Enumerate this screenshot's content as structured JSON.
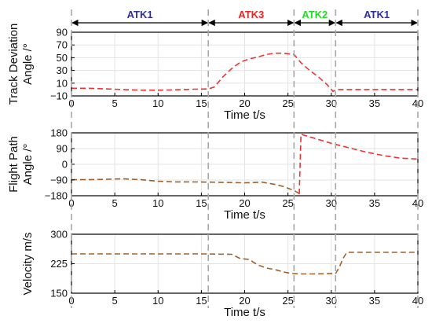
{
  "chart_data": {
    "type": "line",
    "phases": [
      {
        "label": "ATK1",
        "start": 0,
        "end": 15.8,
        "color": "#2e2e9f"
      },
      {
        "label": "ATK3",
        "start": 15.8,
        "end": 25.7,
        "color": "#ee2222"
      },
      {
        "label": "ATK2",
        "start": 25.7,
        "end": 30.5,
        "color": "#22dd22"
      },
      {
        "label": "ATK1",
        "start": 30.5,
        "end": 40,
        "color": "#2e2e9f"
      }
    ],
    "phase_boundaries": [
      0,
      15.8,
      25.7,
      30.5,
      40
    ],
    "panels": [
      {
        "ylabel_lines": [
          "Track Deviation",
          "Angle /°"
        ],
        "xlabel": "Time t/s",
        "xlim": [
          0,
          40
        ],
        "ylim": [
          -10,
          90
        ],
        "yticks": [
          -10,
          10,
          30,
          50,
          70,
          90
        ],
        "ytick_labels": [
          "−10",
          "10",
          "30",
          "50",
          "70",
          "90"
        ],
        "xticks": [
          0,
          5,
          10,
          15,
          20,
          25,
          30,
          35,
          40
        ],
        "series": [
          {
            "color": "#ee3333",
            "segments": [
              [
                [
                  0,
                  2
                ],
                [
                  2,
                  2
                ],
                [
                  4,
                  1
                ],
                [
                  6,
                  0
                ],
                [
                  8,
                  -1
                ],
                [
                  10,
                  -1
                ],
                [
                  12,
                  -0.5
                ],
                [
                  14,
                  0.5
                ],
                [
                  15.8,
                  1
                ],
                [
                  16.5,
                  4
                ],
                [
                  17.5,
                  20
                ],
                [
                  18.5,
                  33
                ],
                [
                  19.5,
                  43
                ],
                [
                  20.5,
                  48
                ],
                [
                  21.5,
                  51
                ],
                [
                  22.5,
                  55
                ],
                [
                  23.5,
                  57
                ],
                [
                  24.5,
                  57
                ],
                [
                  25.7,
                  55
                ],
                [
                  26.5,
                  42
                ],
                [
                  27.5,
                  30
                ],
                [
                  28.5,
                  20
                ],
                [
                  29.5,
                  8
                ],
                [
                  30.2,
                  -3
                ],
                [
                  30.6,
                  0
                ],
                [
                  32,
                  0
                ],
                [
                  35,
                  0
                ],
                [
                  38,
                  0
                ],
                [
                  40,
                  0
                ]
              ]
            ]
          }
        ]
      },
      {
        "ylabel_lines": [
          "Flight Path",
          "Angle /°"
        ],
        "xlabel": "Time t/s",
        "xlim": [
          0,
          40
        ],
        "ylim": [
          -180,
          180
        ],
        "yticks": [
          -180,
          -90,
          0,
          90,
          180
        ],
        "ytick_labels": [
          "−180",
          "−90",
          "0",
          "90",
          "180"
        ],
        "xticks": [
          0,
          5,
          10,
          15,
          20,
          25,
          30,
          35,
          40
        ],
        "series": [
          {
            "color": "#a0602a",
            "segments": [
              [
                [
                  0,
                  -88
                ],
                [
                  2,
                  -88
                ],
                [
                  4,
                  -86
                ],
                [
                  6,
                  -83
                ],
                [
                  8,
                  -88
                ],
                [
                  10,
                  -97
                ],
                [
                  12,
                  -101
                ],
                [
                  14,
                  -101
                ],
                [
                  16,
                  -102
                ],
                [
                  18,
                  -104
                ],
                [
                  20,
                  -106
                ],
                [
                  22,
                  -102
                ],
                [
                  23.5,
                  -115
                ],
                [
                  24.5,
                  -128
                ],
                [
                  25.7,
                  -150
                ],
                [
                  26.3,
                  -168
                ]
              ]
            ]
          },
          {
            "color": "#ee3333",
            "segments": [
              [
                [
                  26.3,
                  -170
                ],
                [
                  26.5,
                  172
                ],
                [
                  28,
                  150
                ],
                [
                  30,
                  120
                ],
                [
                  32,
                  95
                ],
                [
                  34,
                  70
                ],
                [
                  36,
                  50
                ],
                [
                  38,
                  35
                ],
                [
                  40,
                  30
                ]
              ]
            ]
          }
        ]
      },
      {
        "ylabel_lines": [
          "Velocity m/s"
        ],
        "xlabel": "Time t/s",
        "xlim": [
          0,
          40
        ],
        "ylim": [
          150,
          300
        ],
        "yticks": [
          150,
          225,
          300
        ],
        "ytick_labels": [
          "150",
          "225",
          "300"
        ],
        "xticks": [
          0,
          5,
          10,
          15,
          20,
          25,
          30,
          35,
          40
        ],
        "series": [
          {
            "color": "#a0602a",
            "segments": [
              [
                [
                  0,
                  250
                ],
                [
                  5,
                  250
                ],
                [
                  10,
                  250
                ],
                [
                  15,
                  250
                ],
                [
                  18.5,
                  249
                ],
                [
                  19.5,
                  238
                ],
                [
                  20.5,
                  236
                ],
                [
                  21.5,
                  222
                ],
                [
                  22.5,
                  214
                ],
                [
                  23.5,
                  210
                ],
                [
                  24.5,
                  204
                ],
                [
                  25.5,
                  200
                ],
                [
                  26.5,
                  199
                ],
                [
                  28,
                  199
                ],
                [
                  30.5,
                  200
                ],
                [
                  30.9,
                  215
                ],
                [
                  31.4,
                  240
                ],
                [
                  31.8,
                  254
                ],
                [
                  34,
                  254
                ],
                [
                  37,
                  254
                ],
                [
                  40,
                  254
                ]
              ]
            ]
          }
        ]
      }
    ]
  }
}
